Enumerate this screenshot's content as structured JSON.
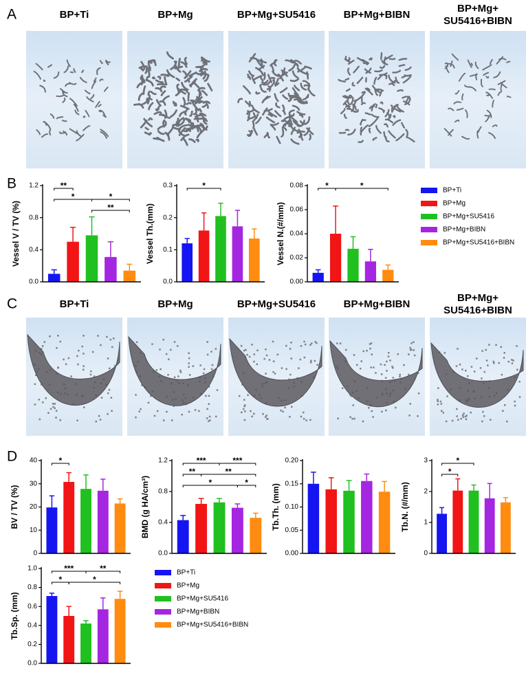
{
  "panel_labels": [
    "A",
    "B",
    "C",
    "D"
  ],
  "groups": [
    {
      "name": "BP+Ti",
      "color": "#1515f2"
    },
    {
      "name": "BP+Mg",
      "color": "#f21515"
    },
    {
      "name": "BP+Mg+SU5416",
      "color": "#20c020"
    },
    {
      "name": "BP+Mg+BIBN",
      "color": "#a526e0"
    },
    {
      "name": "BP+Mg+SU5416+BIBN",
      "color": "#ff8c10"
    }
  ],
  "image_rows": [
    {
      "titles": [
        [
          "BP+Ti"
        ],
        [
          "BP+Mg"
        ],
        [
          "BP+Mg+SU5416"
        ],
        [
          "BP+Mg+BIBN"
        ],
        [
          "BP+Mg+",
          "SU5416+BIBN"
        ]
      ]
    },
    {
      "titles": [
        [
          "BP+Ti"
        ],
        [
          "BP+Mg"
        ],
        [
          "BP+Mg+SU5416"
        ],
        [
          "BP+Mg+BIBN"
        ],
        [
          "BP+Mg+",
          "SU5416+BIBN"
        ]
      ]
    }
  ],
  "chart_data": [
    {
      "type": "bar",
      "ylabel": "Vessel V / TV (%)",
      "values": [
        0.1,
        0.5,
        0.58,
        0.31,
        0.14
      ],
      "errors": [
        0.05,
        0.18,
        0.23,
        0.19,
        0.08
      ],
      "ylim": [
        0,
        1.2
      ],
      "yticks": [
        {
          "value": 0,
          "label": "0.0"
        },
        0.4,
        0.8,
        1.2
      ],
      "significance": [
        [
          {
            "from": "BP+Ti",
            "to": "BP+Mg",
            "label": "**"
          }
        ],
        [
          {
            "from": "BP+Ti",
            "to": "BP+Mg+SU5416",
            "label": "*"
          },
          {
            "from": "BP+Mg+SU5416",
            "to": "BP+Mg+SU5416+BIBN",
            "label": "*"
          }
        ],
        [
          {
            "from": "BP+Mg+SU5416",
            "to": "BP+Mg+SU5416+BIBN",
            "label": "**"
          }
        ]
      ]
    },
    {
      "type": "bar",
      "ylabel": "Vessel Th.(mm)",
      "values": [
        0.12,
        0.16,
        0.205,
        0.173,
        0.135
      ],
      "errors": [
        0.015,
        0.055,
        0.04,
        0.05,
        0.03
      ],
      "ylim": [
        0,
        0.3
      ],
      "yticks": [
        {
          "value": 0,
          "label": "0.0"
        },
        0.1,
        0.2,
        0.3
      ],
      "significance": [
        [
          {
            "from": "BP+Ti",
            "to": "BP+Mg+SU5416",
            "label": "*"
          }
        ]
      ]
    },
    {
      "type": "bar",
      "ylabel": "Vessel N.(#/mm)",
      "values": [
        0.0075,
        0.04,
        0.0275,
        0.017,
        0.01
      ],
      "errors": [
        0.0025,
        0.023,
        0.01,
        0.01,
        0.004
      ],
      "ylim": [
        0,
        0.08
      ],
      "yticks": [
        {
          "value": 0,
          "label": "0.00"
        },
        0.02,
        0.04,
        0.06,
        0.08
      ],
      "significance": [
        [
          {
            "from": "BP+Ti",
            "to": "BP+Mg",
            "label": "*"
          },
          {
            "from": "BP+Mg",
            "to": "BP+Mg+SU5416+BIBN",
            "label": "*"
          }
        ]
      ]
    },
    {
      "type": "bar",
      "ylabel": "BV / TV (%)",
      "values": [
        19.8,
        30.8,
        27.8,
        27,
        21.5
      ],
      "errors": [
        5,
        4,
        6,
        5,
        2
      ],
      "ylim": [
        0,
        40
      ],
      "yticks": [
        0,
        10,
        20,
        30,
        40
      ],
      "significance": [
        [
          {
            "from": "BP+Ti",
            "to": "BP+Mg",
            "label": "*"
          }
        ]
      ]
    },
    {
      "type": "bar",
      "ylabel": "BMD (g HA/cm³)",
      "values": [
        0.43,
        0.64,
        0.66,
        0.59,
        0.46
      ],
      "errors": [
        0.06,
        0.07,
        0.05,
        0.05,
        0.06
      ],
      "ylim": [
        0,
        1.2
      ],
      "yticks": [
        {
          "value": 0,
          "label": "0.0"
        },
        0.4,
        0.8,
        1.2
      ],
      "significance": [
        [
          {
            "from": "BP+Ti",
            "to": "BP+Mg+SU5416",
            "label": "***"
          },
          {
            "from": "BP+Mg+SU5416",
            "to": "BP+Mg+SU5416+BIBN",
            "label": "***"
          }
        ],
        [
          {
            "from": "BP+Ti",
            "to": "BP+Mg",
            "label": "**"
          },
          {
            "from": "BP+Mg",
            "to": "BP+Mg+SU5416+BIBN",
            "label": "**"
          }
        ],
        [
          {
            "from": "BP+Ti",
            "to": "BP+Mg+BIBN",
            "label": "*"
          },
          {
            "from": "BP+Mg+BIBN",
            "to": "BP+Mg+SU5416+BIBN",
            "label": "*"
          }
        ]
      ]
    },
    {
      "type": "bar",
      "ylabel": "Tb.Th. (mm)",
      "values": [
        0.15,
        0.138,
        0.135,
        0.156,
        0.133
      ],
      "errors": [
        0.025,
        0.025,
        0.022,
        0.015,
        0.022
      ],
      "ylim": [
        0,
        0.2
      ],
      "yticks": [
        {
          "value": 0,
          "label": "0.00"
        },
        0.05,
        {
          "value": 0.1,
          "label": "0.10"
        },
        0.15,
        {
          "value": 0.2,
          "label": "0.20"
        }
      ],
      "significance": []
    },
    {
      "type": "bar",
      "ylabel": "Tb.N. (#/mm)",
      "values": [
        1.28,
        2.03,
        2.03,
        1.78,
        1.65
      ],
      "errors": [
        0.2,
        0.38,
        0.18,
        0.48,
        0.15
      ],
      "ylim": [
        0,
        3
      ],
      "yticks": [
        0,
        1,
        2,
        3
      ],
      "significance": [
        [
          {
            "from": "BP+Ti",
            "to": "BP+Mg+SU5416",
            "label": "*"
          }
        ],
        [
          {
            "from": "BP+Ti",
            "to": "BP+Mg",
            "label": "*"
          }
        ]
      ]
    },
    {
      "type": "bar",
      "ylabel": "Tb.Sp. (mm)",
      "values": [
        0.71,
        0.5,
        0.42,
        0.57,
        0.68
      ],
      "errors": [
        0.03,
        0.1,
        0.03,
        0.12,
        0.08
      ],
      "ylim": [
        0,
        1
      ],
      "yticks": [
        {
          "value": 0,
          "label": "0.0"
        },
        0.2,
        0.4,
        0.6,
        0.8,
        {
          "value": 1,
          "label": "1.0"
        }
      ],
      "significance": [
        [
          {
            "from": "BP+Ti",
            "to": "BP+Mg+SU5416",
            "label": "***"
          },
          {
            "from": "BP+Mg+SU5416",
            "to": "BP+Mg+SU5416+BIBN",
            "label": "**"
          }
        ],
        [
          {
            "from": "BP+Ti",
            "to": "BP+Mg",
            "label": "*"
          },
          {
            "from": "BP+Mg",
            "to": "BP+Mg+SU5416+BIBN",
            "label": "*"
          }
        ]
      ]
    }
  ]
}
